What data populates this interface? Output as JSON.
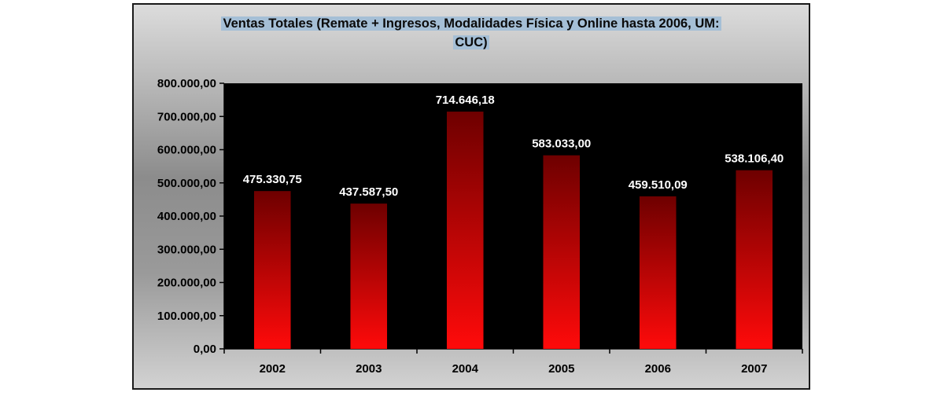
{
  "chart_data": {
    "type": "bar",
    "title": "Ventas Totales (Remate + Ingresos, Modalidades Física y Online hasta 2006, UM:",
    "title_line2": "CUC)",
    "categories": [
      "2002",
      "2003",
      "2004",
      "2005",
      "2006",
      "2007"
    ],
    "values": [
      475330.75,
      437587.5,
      714646.18,
      583033.0,
      459510.09,
      538106.4
    ],
    "value_labels": [
      "475.330,75",
      "437.587,50",
      "714.646,18",
      "583.033,00",
      "459.510,09",
      "538.106,40"
    ],
    "ylim": [
      0,
      800000
    ],
    "yticks": [
      "0,00",
      "100.000,00",
      "200.000,00",
      "300.000,00",
      "400.000,00",
      "500.000,00",
      "600.000,00",
      "700.000,00",
      "800.000,00"
    ],
    "xlabel": "",
    "ylabel": "",
    "grid": false,
    "legend": "none",
    "colors": {
      "bar_top": "#6e0000",
      "bar_bottom": "#ff0a0a",
      "plot_bg": "#000000",
      "title_highlight": "#a5bfd6"
    }
  }
}
